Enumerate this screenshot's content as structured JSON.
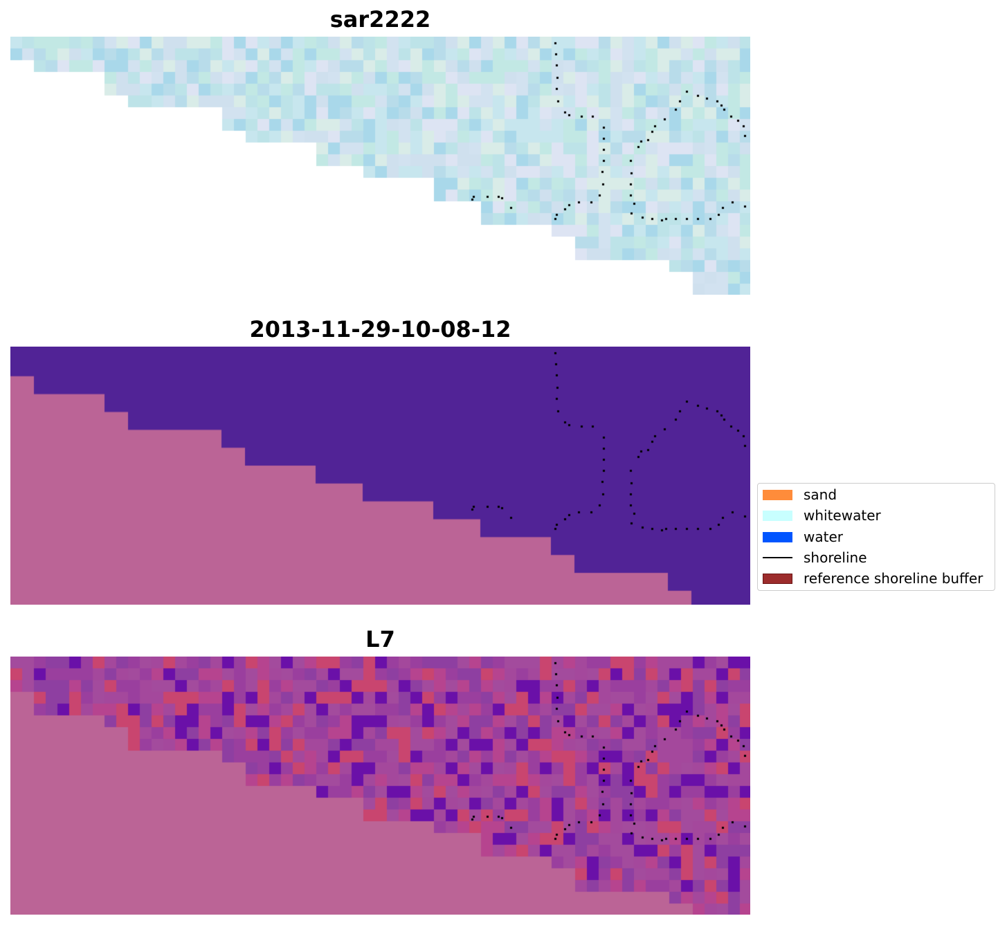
{
  "panels": {
    "rgb": {
      "title": "sar2222"
    },
    "classified": {
      "title": "2013-11-29-10-08-12"
    },
    "l7": {
      "title": "L7"
    }
  },
  "legend": {
    "items": [
      {
        "label": "sand",
        "kind": "patch",
        "color": "#ff8c3a"
      },
      {
        "label": "whitewater",
        "kind": "patch",
        "color": "#c8ffff"
      },
      {
        "label": "water",
        "kind": "patch",
        "color": "#0055ff"
      },
      {
        "label": "shoreline",
        "kind": "line",
        "color": "#000000"
      },
      {
        "label": "reference shoreline buffer",
        "kind": "patch",
        "color": "#9c2c2c",
        "edge": "#6b1414"
      }
    ]
  },
  "colors": {
    "land_mask": "#bb6496",
    "water_class": "#512396",
    "shoreline_dots": "#000000",
    "rgb_palette": [
      "#c7e6ee",
      "#d2e2f0",
      "#bde3e8",
      "#cfe0ee",
      "#b8dcea",
      "#d9ece8",
      "#c2e8e4",
      "#dde4f3",
      "#a9d8ea"
    ],
    "l7_palette": [
      "#9a3f9e",
      "#a4489c",
      "#8e3fa1",
      "#b6448f",
      "#c9456f",
      "#6a10a8",
      "#a34b9d"
    ]
  }
}
